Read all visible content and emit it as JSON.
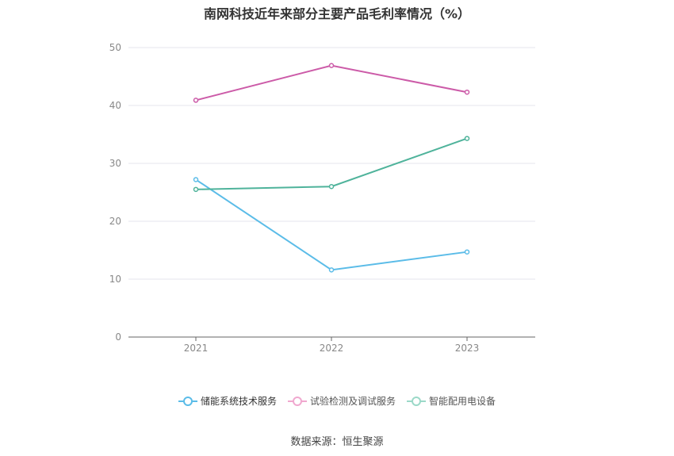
{
  "chart_data": {
    "type": "line",
    "title": "南网科技近年来部分主要产品毛利率情况（%）",
    "categories": [
      "2021",
      "2022",
      "2023"
    ],
    "ylim": [
      0,
      50
    ],
    "yticks": [
      0,
      10,
      20,
      30,
      40,
      50
    ],
    "grid": true,
    "legend_position": "bottom",
    "series": [
      {
        "name": "储能系统技术服务",
        "color": "#5bbce8",
        "values": [
          27.2,
          11.6,
          14.7
        ]
      },
      {
        "name": "试验检测及调试服务",
        "color": "#cc5ba8",
        "values": [
          40.9,
          46.9,
          42.3
        ]
      },
      {
        "name": "智能配用电设备",
        "color": "#4fb39b",
        "values": [
          25.5,
          26.0,
          34.3
        ]
      }
    ],
    "source": "数据来源：恒生聚源"
  },
  "colors": {
    "legend_inactive_1": "#f0a8cf",
    "legend_inactive_2": "#9bd9c8"
  }
}
